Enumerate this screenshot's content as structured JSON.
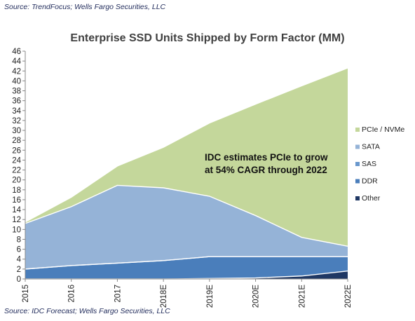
{
  "source_top": "Source: TrendFocus; Wells Fargo Securities, LLC",
  "source_bottom": "Source: IDC Forecast; Wells Fargo Securities, LLC",
  "chart_data": {
    "type": "area",
    "stacked": true,
    "title": "Enterprise SSD Units Shipped by Form Factor (MM)",
    "xlabel": "",
    "ylabel": "",
    "x": [
      "2015",
      "2016",
      "2017",
      "2018E",
      "2019E",
      "2020E",
      "2021E",
      "2022E"
    ],
    "ylim": [
      0,
      46
    ],
    "yticks": [
      0,
      2,
      4,
      6,
      8,
      10,
      12,
      14,
      16,
      18,
      20,
      22,
      24,
      26,
      28,
      30,
      32,
      34,
      36,
      38,
      40,
      42,
      44,
      46
    ],
    "legend_position": "right",
    "series": [
      {
        "name": "Other",
        "color": "#1f3864",
        "values": [
          0.0,
          0.0,
          0.0,
          0.0,
          0.1,
          0.2,
          0.6,
          1.6
        ]
      },
      {
        "name": "DDR",
        "color": "#4a7ebb",
        "values": [
          2.0,
          2.7,
          3.2,
          3.7,
          4.4,
          4.3,
          3.9,
          2.9
        ]
      },
      {
        "name": "SAS",
        "color": "#6a98cd",
        "values": [
          0.0,
          0.0,
          0.0,
          0.0,
          0.0,
          0.0,
          0.0,
          0.0
        ]
      },
      {
        "name": "SATA",
        "color": "#95b3d7",
        "values": [
          9.2,
          11.9,
          15.7,
          14.7,
          12.2,
          8.3,
          3.9,
          2.1
        ]
      },
      {
        "name": "PCIe / NVMe",
        "color": "#c4d79b",
        "values": [
          0.3,
          1.9,
          3.9,
          8.2,
          14.8,
          22.5,
          30.6,
          36.0
        ]
      }
    ],
    "annotation": [
      "IDC estimates PCIe to grow",
      "at 54% CAGR through 2022"
    ]
  }
}
